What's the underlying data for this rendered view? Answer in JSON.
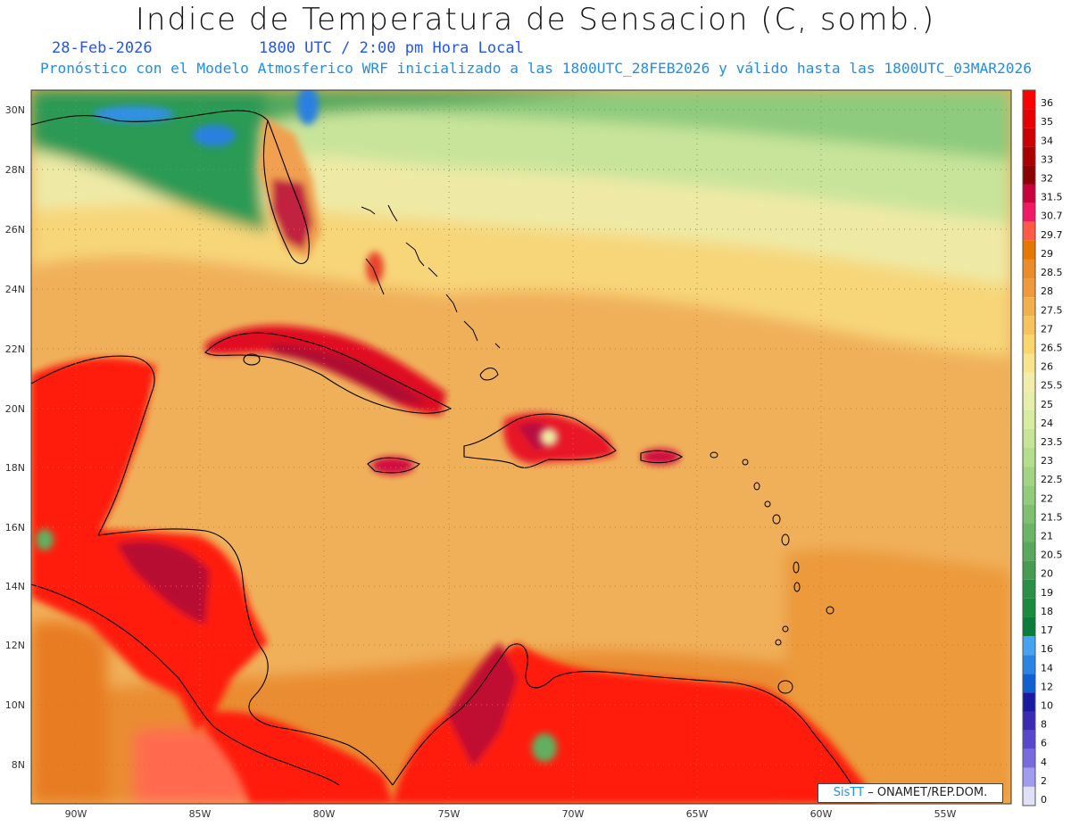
{
  "header": {
    "title": "Indice de Temperatura de Sensacion (C, somb.)",
    "date": "28-Feb-2026",
    "time": "1800 UTC / 2:00 pm Hora Local",
    "forecast_line": "Pronóstico con el Modelo Atmosferico WRF inicializado a las 1800UTC_28FEB2026 y válido hasta las  1800UTC_03MAR2026"
  },
  "axes": {
    "lat_labels": [
      "30N",
      "28N",
      "26N",
      "24N",
      "22N",
      "20N",
      "18N",
      "16N",
      "14N",
      "12N",
      "10N",
      "8N"
    ],
    "lon_labels": [
      "90W",
      "85W",
      "80W",
      "75W",
      "70W",
      "65W",
      "60W",
      "55W"
    ]
  },
  "legend": {
    "levels": [
      "36",
      "35",
      "34",
      "33",
      "32",
      "31.5",
      "30.7",
      "29.7",
      "29",
      "28.5",
      "28",
      "27.5",
      "27",
      "26.5",
      "26",
      "25.5",
      "25",
      "24",
      "23.5",
      "23",
      "22.5",
      "22",
      "21.5",
      "21",
      "20.5",
      "20",
      "19",
      "18",
      "17",
      "16",
      "14",
      "12",
      "10",
      "8",
      "6",
      "4",
      "2",
      "0"
    ],
    "colors": [
      "#ff0000",
      "#e60000",
      "#cc0000",
      "#aa0000",
      "#8b0000",
      "#c8003c",
      "#f01a64",
      "#ff5a45",
      "#e67800",
      "#ea8c28",
      "#ee9a3a",
      "#f2b04a",
      "#f6c45a",
      "#f8d66c",
      "#f8e48a",
      "#f2eeaa",
      "#e6eeaa",
      "#d8eca0",
      "#c6e696",
      "#b4de8c",
      "#a2d484",
      "#90cc7a",
      "#7ec070",
      "#6cb466",
      "#5aa85c",
      "#489c52",
      "#2a9048",
      "#1a8a3c",
      "#0a7d3a",
      "#44a4f0",
      "#2a84e4",
      "#1060d0",
      "#1a1aa0",
      "#3a2ab4",
      "#5a48cc",
      "#7a6ae0",
      "#a09cf0",
      "#e0e0f8"
    ]
  },
  "credit": {
    "brand": "SisTT",
    "text": " – ONAMET/REP.DOM."
  },
  "map_colors": {
    "ocean_base": "#f1b35a",
    "north_green": "#5fb06c",
    "land_hot": "#ff1a10",
    "land_dark": "#b81030",
    "coast": "#000000",
    "grid": "#9a9a9a"
  }
}
